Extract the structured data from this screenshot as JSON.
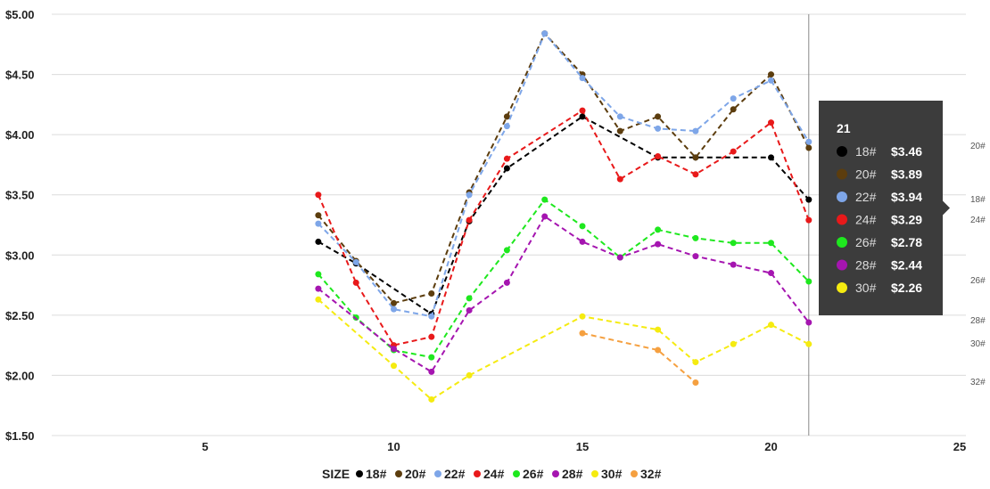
{
  "chart_data": {
    "type": "line",
    "ylim": [
      1.5,
      5.0
    ],
    "xlim": [
      1,
      25
    ],
    "yticks": [
      {
        "value": 5.0,
        "label": "$5.00"
      },
      {
        "value": 4.5,
        "label": "$4.50"
      },
      {
        "value": 4.0,
        "label": "$4.00"
      },
      {
        "value": 3.5,
        "label": "$3.50"
      },
      {
        "value": 3.0,
        "label": "$3.00"
      },
      {
        "value": 2.5,
        "label": "$2.50"
      },
      {
        "value": 2.0,
        "label": "$2.00"
      },
      {
        "value": 1.5,
        "label": "$1.50"
      }
    ],
    "xticks": [
      {
        "value": 5,
        "label": "5"
      },
      {
        "value": 10,
        "label": "10"
      },
      {
        "value": 15,
        "label": "15"
      },
      {
        "value": 20,
        "label": "20"
      },
      {
        "value": 25,
        "label": "25"
      }
    ],
    "grid": true,
    "legend_title": "SIZE",
    "legend_position": "bottom",
    "series": [
      {
        "name": "18#",
        "color": "#000000",
        "points": [
          [
            8,
            3.11
          ],
          [
            9,
            2.93
          ],
          [
            11,
            2.51
          ],
          [
            12,
            3.28
          ],
          [
            13,
            3.72
          ],
          [
            15,
            4.15
          ],
          [
            17,
            3.81
          ],
          [
            18,
            3.81
          ],
          [
            20,
            3.81
          ],
          [
            21,
            3.46
          ]
        ]
      },
      {
        "name": "20#",
        "color": "#5c3d0e",
        "points": [
          [
            8,
            3.33
          ],
          [
            9,
            2.95
          ],
          [
            10,
            2.6
          ],
          [
            11,
            2.68
          ],
          [
            12,
            3.52
          ],
          [
            13,
            4.15
          ],
          [
            14,
            4.84
          ],
          [
            15,
            4.5
          ],
          [
            16,
            4.03
          ],
          [
            17,
            4.15
          ],
          [
            18,
            3.81
          ],
          [
            19,
            4.21
          ],
          [
            20,
            4.5
          ],
          [
            21,
            3.89
          ]
        ]
      },
      {
        "name": "22#",
        "color": "#7ea6e8",
        "points": [
          [
            8,
            3.26
          ],
          [
            9,
            2.94
          ],
          [
            10,
            2.55
          ],
          [
            11,
            2.49
          ],
          [
            12,
            3.5
          ],
          [
            13,
            4.07
          ],
          [
            14,
            4.84
          ],
          [
            15,
            4.47
          ],
          [
            16,
            4.15
          ],
          [
            17,
            4.05
          ],
          [
            18,
            4.03
          ],
          [
            19,
            4.3
          ],
          [
            20,
            4.45
          ],
          [
            21,
            3.94
          ]
        ]
      },
      {
        "name": "24#",
        "color": "#e8191a",
        "points": [
          [
            8,
            3.5
          ],
          [
            9,
            2.77
          ],
          [
            10,
            2.25
          ],
          [
            11,
            2.32
          ],
          [
            12,
            3.29
          ],
          [
            13,
            3.8
          ],
          [
            15,
            4.2
          ],
          [
            16,
            3.63
          ],
          [
            17,
            3.82
          ],
          [
            18,
            3.67
          ],
          [
            19,
            3.86
          ],
          [
            20,
            4.1
          ],
          [
            21,
            3.29
          ]
        ]
      },
      {
        "name": "26#",
        "color": "#1ee81e",
        "points": [
          [
            8,
            2.84
          ],
          [
            9,
            2.48
          ],
          [
            10,
            2.21
          ],
          [
            11,
            2.15
          ],
          [
            12,
            2.64
          ],
          [
            13,
            3.04
          ],
          [
            14,
            3.46
          ],
          [
            15,
            3.24
          ],
          [
            16,
            2.98
          ],
          [
            17,
            3.21
          ],
          [
            18,
            3.14
          ],
          [
            19,
            3.1
          ],
          [
            20,
            3.1
          ],
          [
            21,
            2.78
          ]
        ]
      },
      {
        "name": "28#",
        "color": "#a515b0",
        "points": [
          [
            8,
            2.72
          ],
          [
            10,
            2.22
          ],
          [
            11,
            2.03
          ],
          [
            12,
            2.54
          ],
          [
            13,
            2.77
          ],
          [
            14,
            3.32
          ],
          [
            15,
            3.11
          ],
          [
            16,
            2.98
          ],
          [
            17,
            3.09
          ],
          [
            18,
            2.99
          ],
          [
            19,
            2.92
          ],
          [
            20,
            2.85
          ],
          [
            21,
            2.44
          ]
        ]
      },
      {
        "name": "30#",
        "color": "#f5eb10",
        "points": [
          [
            8,
            2.63
          ],
          [
            10,
            2.08
          ],
          [
            11,
            1.8
          ],
          [
            12,
            2.0
          ],
          [
            15,
            2.49
          ],
          [
            17,
            2.38
          ],
          [
            18,
            2.11
          ],
          [
            19,
            2.26
          ],
          [
            20,
            2.42
          ],
          [
            21,
            2.26
          ]
        ]
      },
      {
        "name": "32#",
        "color": "#f5a040",
        "points": [
          [
            15,
            2.35
          ],
          [
            17,
            2.21
          ],
          [
            18,
            1.94
          ]
        ]
      }
    ],
    "end_labels": [
      "20#",
      "18#",
      "24#",
      "26#",
      "28#",
      "30#",
      "32#"
    ],
    "crosshair_x": 21,
    "tooltip": {
      "title": "21",
      "rows": [
        {
          "name": "18#",
          "value": "$3.46",
          "color": "#000000"
        },
        {
          "name": "20#",
          "value": "$3.89",
          "color": "#5c3d0e"
        },
        {
          "name": "22#",
          "value": "$3.94",
          "color": "#7ea6e8"
        },
        {
          "name": "24#",
          "value": "$3.29",
          "color": "#e8191a"
        },
        {
          "name": "26#",
          "value": "$2.78",
          "color": "#1ee81e"
        },
        {
          "name": "28#",
          "value": "$2.44",
          "color": "#a515b0"
        },
        {
          "name": "30#",
          "value": "$2.26",
          "color": "#f5eb10"
        }
      ]
    }
  }
}
